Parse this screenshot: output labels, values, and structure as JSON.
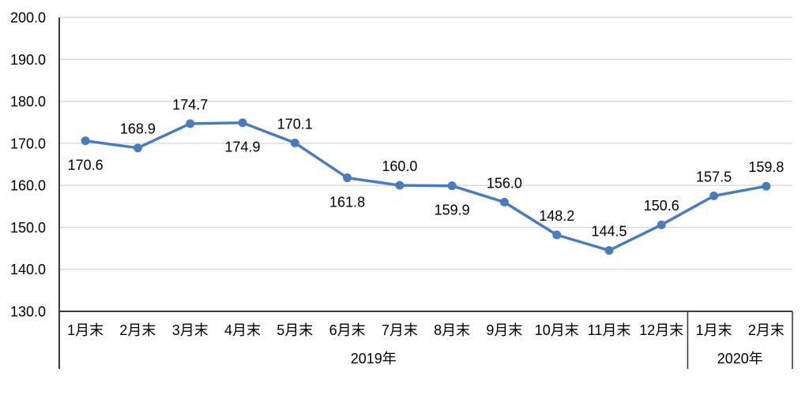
{
  "chart_data": {
    "type": "line",
    "title": "",
    "xlabel": "",
    "ylabel": "",
    "categories": [
      "1月末",
      "2月末",
      "3月末",
      "4月末",
      "5月末",
      "6月末",
      "7月末",
      "8月末",
      "9月末",
      "10月末",
      "11月末",
      "12月末",
      "1月末",
      "2月末"
    ],
    "values": [
      170.6,
      168.9,
      174.7,
      174.9,
      170.1,
      161.8,
      160.0,
      159.9,
      156.0,
      148.2,
      144.5,
      150.6,
      157.5,
      159.8
    ],
    "data_label_positions": [
      "below",
      "above",
      "above",
      "below",
      "above",
      "below",
      "above",
      "below",
      "above",
      "above",
      "above",
      "above",
      "above",
      "above"
    ],
    "data_label_decimals": 1,
    "year_groups": [
      {
        "label": "2019年",
        "start_index": 0,
        "end_index": 11
      },
      {
        "label": "2020年",
        "start_index": 12,
        "end_index": 13
      }
    ],
    "y_axis": {
      "min": 130,
      "max": 200,
      "step": 10,
      "tick_labels": [
        "130.0",
        "140.0",
        "150.0",
        "160.0",
        "170.0",
        "180.0",
        "190.0",
        "200.0"
      ]
    },
    "grid": true,
    "legend": "none",
    "colors": {
      "line": "#4A7CBD",
      "marker": "#4A7CBD",
      "gridline": "#D9D9D9",
      "axis": "#3B3B3B",
      "text": "#000000",
      "background": "#FFFFFF"
    }
  }
}
